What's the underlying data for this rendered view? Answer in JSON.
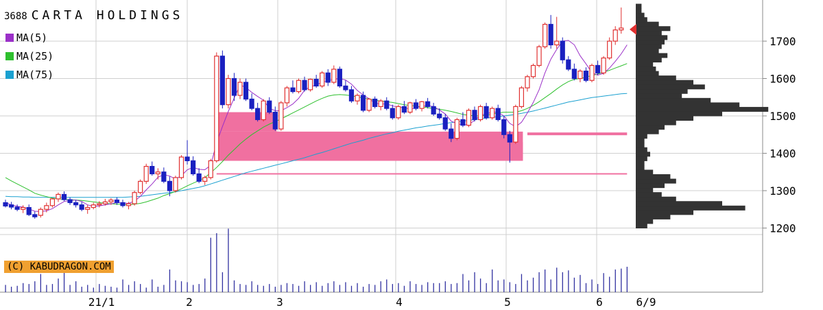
{
  "header": {
    "code": "3688",
    "name": "CARTA HOLDINGS"
  },
  "legend": [
    {
      "label": "MA(5)",
      "color": "#9b30c8"
    },
    {
      "label": "MA(25)",
      "color": "#2ec02e"
    },
    {
      "label": "MA(75)",
      "color": "#1aa0d0"
    }
  ],
  "credit": "(C) KABUDRAGON.COM",
  "chart_data": {
    "type": "candlestick",
    "y_ticks": [
      1700,
      1600,
      1500,
      1400,
      1300,
      1200
    ],
    "ylim": [
      1200,
      1800
    ],
    "x_labels": [
      "21/1",
      "2",
      "3",
      "4",
      "5",
      "6",
      "6/9"
    ],
    "colors": {
      "up": "#e03030",
      "down": "#1a20c0",
      "ma5": "#9b30c8",
      "ma25": "#2ec02e",
      "ma75": "#1aa0d0",
      "volume": "#3030a0",
      "vwap_box": "#f070a0",
      "profile": "#333333",
      "price_marker": "#e03030"
    },
    "candles": [
      [
        1268,
        1276,
        1255,
        1259
      ],
      [
        1262,
        1270,
        1250,
        1256
      ],
      [
        1256,
        1263,
        1245,
        1250
      ],
      [
        1250,
        1261,
        1240,
        1255
      ],
      [
        1255,
        1263,
        1232,
        1236
      ],
      [
        1236,
        1244,
        1225,
        1230
      ],
      [
        1234,
        1255,
        1228,
        1250
      ],
      [
        1250,
        1268,
        1242,
        1260
      ],
      [
        1260,
        1280,
        1255,
        1278
      ],
      [
        1278,
        1295,
        1270,
        1290
      ],
      [
        1290,
        1298,
        1272,
        1276
      ],
      [
        1276,
        1282,
        1262,
        1268
      ],
      [
        1268,
        1275,
        1255,
        1262
      ],
      [
        1262,
        1270,
        1245,
        1250
      ],
      [
        1250,
        1262,
        1238,
        1255
      ],
      [
        1255,
        1268,
        1250,
        1262
      ],
      [
        1262,
        1272,
        1255,
        1265
      ],
      [
        1265,
        1278,
        1260,
        1270
      ],
      [
        1270,
        1280,
        1262,
        1275
      ],
      [
        1275,
        1282,
        1262,
        1268
      ],
      [
        1268,
        1276,
        1255,
        1260
      ],
      [
        1260,
        1270,
        1250,
        1265
      ],
      [
        1265,
        1300,
        1260,
        1295
      ],
      [
        1295,
        1330,
        1290,
        1325
      ],
      [
        1325,
        1372,
        1318,
        1365
      ],
      [
        1365,
        1378,
        1340,
        1345
      ],
      [
        1345,
        1360,
        1330,
        1350
      ],
      [
        1350,
        1362,
        1320,
        1325
      ],
      [
        1325,
        1338,
        1285,
        1300
      ],
      [
        1300,
        1340,
        1295,
        1335
      ],
      [
        1335,
        1395,
        1330,
        1390
      ],
      [
        1390,
        1435,
        1370,
        1380
      ],
      [
        1380,
        1392,
        1340,
        1345
      ],
      [
        1345,
        1360,
        1320,
        1325
      ],
      [
        1325,
        1340,
        1315,
        1335
      ],
      [
        1335,
        1385,
        1330,
        1380
      ],
      [
        1380,
        1670,
        1375,
        1660
      ],
      [
        1660,
        1675,
        1520,
        1530
      ],
      [
        1530,
        1610,
        1520,
        1600
      ],
      [
        1600,
        1615,
        1540,
        1555
      ],
      [
        1555,
        1600,
        1545,
        1590
      ],
      [
        1590,
        1600,
        1540,
        1545
      ],
      [
        1545,
        1560,
        1515,
        1520
      ],
      [
        1520,
        1535,
        1485,
        1490
      ],
      [
        1490,
        1545,
        1485,
        1540
      ],
      [
        1540,
        1550,
        1505,
        1510
      ],
      [
        1510,
        1525,
        1460,
        1465
      ],
      [
        1465,
        1540,
        1460,
        1535
      ],
      [
        1535,
        1580,
        1525,
        1575
      ],
      [
        1575,
        1595,
        1560,
        1565
      ],
      [
        1565,
        1600,
        1560,
        1595
      ],
      [
        1595,
        1605,
        1565,
        1570
      ],
      [
        1570,
        1600,
        1565,
        1598
      ],
      [
        1598,
        1610,
        1575,
        1580
      ],
      [
        1580,
        1620,
        1575,
        1615
      ],
      [
        1615,
        1625,
        1580,
        1590
      ],
      [
        1590,
        1635,
        1585,
        1625
      ],
      [
        1625,
        1632,
        1575,
        1580
      ],
      [
        1580,
        1595,
        1565,
        1570
      ],
      [
        1570,
        1580,
        1535,
        1540
      ],
      [
        1540,
        1560,
        1530,
        1555
      ],
      [
        1555,
        1565,
        1510,
        1515
      ],
      [
        1515,
        1548,
        1510,
        1545
      ],
      [
        1545,
        1552,
        1520,
        1525
      ],
      [
        1525,
        1545,
        1515,
        1540
      ],
      [
        1540,
        1550,
        1515,
        1520
      ],
      [
        1520,
        1530,
        1490,
        1495
      ],
      [
        1495,
        1530,
        1490,
        1525
      ],
      [
        1525,
        1540,
        1505,
        1510
      ],
      [
        1510,
        1538,
        1505,
        1535
      ],
      [
        1535,
        1545,
        1515,
        1520
      ],
      [
        1520,
        1540,
        1512,
        1538
      ],
      [
        1538,
        1548,
        1520,
        1525
      ],
      [
        1525,
        1535,
        1500,
        1505
      ],
      [
        1505,
        1520,
        1490,
        1495
      ],
      [
        1495,
        1505,
        1460,
        1465
      ],
      [
        1465,
        1480,
        1430,
        1440
      ],
      [
        1440,
        1495,
        1435,
        1490
      ],
      [
        1490,
        1510,
        1470,
        1475
      ],
      [
        1475,
        1520,
        1470,
        1515
      ],
      [
        1515,
        1525,
        1485,
        1490
      ],
      [
        1490,
        1530,
        1485,
        1525
      ],
      [
        1525,
        1535,
        1490,
        1495
      ],
      [
        1495,
        1525,
        1490,
        1520
      ],
      [
        1520,
        1530,
        1485,
        1490
      ],
      [
        1490,
        1500,
        1440,
        1450
      ],
      [
        1450,
        1460,
        1375,
        1430
      ],
      [
        1430,
        1530,
        1425,
        1525
      ],
      [
        1525,
        1580,
        1520,
        1575
      ],
      [
        1575,
        1610,
        1565,
        1605
      ],
      [
        1605,
        1640,
        1600,
        1635
      ],
      [
        1635,
        1690,
        1630,
        1685
      ],
      [
        1685,
        1750,
        1680,
        1745
      ],
      [
        1745,
        1770,
        1680,
        1690
      ],
      [
        1690,
        1765,
        1680,
        1700
      ],
      [
        1700,
        1710,
        1640,
        1650
      ],
      [
        1650,
        1660,
        1620,
        1625
      ],
      [
        1625,
        1640,
        1595,
        1600
      ],
      [
        1600,
        1625,
        1590,
        1620
      ],
      [
        1620,
        1630,
        1590,
        1595
      ],
      [
        1595,
        1640,
        1590,
        1635
      ],
      [
        1635,
        1648,
        1610,
        1615
      ],
      [
        1615,
        1660,
        1610,
        1655
      ],
      [
        1655,
        1710,
        1650,
        1700
      ],
      [
        1700,
        1740,
        1690,
        1730
      ],
      [
        1730,
        1790,
        1720,
        1735
      ]
    ],
    "ma5": [
      1268,
      1262,
      1258,
      1256,
      1251,
      1245,
      1244,
      1246,
      1252,
      1262,
      1271,
      1274,
      1275,
      1271,
      1262,
      1258,
      1259,
      1262,
      1265,
      1268,
      1267,
      1266,
      1272,
      1285,
      1302,
      1318,
      1336,
      1343,
      1339,
      1331,
      1340,
      1356,
      1362,
      1357,
      1356,
      1368,
      1428,
      1472,
      1512,
      1548,
      1583,
      1576,
      1563,
      1552,
      1542,
      1520,
      1514,
      1514,
      1522,
      1532,
      1547,
      1569,
      1578,
      1583,
      1590,
      1594,
      1598,
      1600,
      1596,
      1585,
      1568,
      1556,
      1546,
      1534,
      1532,
      1532,
      1527,
      1523,
      1522,
      1518,
      1522,
      1526,
      1527,
      1525,
      1516,
      1505,
      1486,
      1479,
      1476,
      1477,
      1488,
      1502,
      1505,
      1511,
      1509,
      1500,
      1480,
      1471,
      1483,
      1508,
      1536,
      1570,
      1615,
      1652,
      1678,
      1700,
      1702,
      1690,
      1661,
      1639,
      1616,
      1609,
      1614,
      1628,
      1646,
      1666,
      1690
    ],
    "ma25": [
      1335,
      1326,
      1318,
      1310,
      1302,
      1293,
      1288,
      1284,
      1280,
      1278,
      1277,
      1276,
      1275,
      1274,
      1272,
      1270,
      1268,
      1266,
      1265,
      1264,
      1263,
      1263,
      1264,
      1266,
      1270,
      1275,
      1280,
      1287,
      1292,
      1298,
      1305,
      1313,
      1320,
      1327,
      1335,
      1348,
      1362,
      1378,
      1395,
      1410,
      1425,
      1438,
      1450,
      1460,
      1470,
      1478,
      1485,
      1492,
      1500,
      1508,
      1516,
      1524,
      1532,
      1540,
      1547,
      1553,
      1556,
      1557,
      1556,
      1554,
      1551,
      1548,
      1545,
      1542,
      1540,
      1538,
      1536,
      1533,
      1530,
      1528,
      1526,
      1524,
      1522,
      1520,
      1518,
      1515,
      1512,
      1508,
      1504,
      1502,
      1500,
      1500,
      1502,
      1505,
      1508,
      1510,
      1510,
      1510,
      1514,
      1520,
      1528,
      1538,
      1549,
      1560,
      1572,
      1583,
      1592,
      1598,
      1600,
      1604,
      1608,
      1612,
      1617,
      1622,
      1628,
      1634,
      1640
    ],
    "ma75": [
      1285,
      1284,
      1284,
      1283,
      1283,
      1282,
      1282,
      1282,
      1282,
      1282,
      1282,
      1282,
      1282,
      1282,
      1282,
      1282,
      1282,
      1282,
      1282,
      1282,
      1282,
      1283,
      1284,
      1285,
      1287,
      1289,
      1291,
      1293,
      1295,
      1297,
      1300,
      1303,
      1306,
      1309,
      1313,
      1318,
      1323,
      1328,
      1333,
      1338,
      1343,
      1348,
      1352,
      1356,
      1360,
      1364,
      1368,
      1372,
      1376,
      1380,
      1384,
      1388,
      1393,
      1398,
      1402,
      1407,
      1412,
      1417,
      1422,
      1427,
      1431,
      1435,
      1440,
      1444,
      1448,
      1452,
      1455,
      1459,
      1462,
      1465,
      1468,
      1470,
      1473,
      1475,
      1477,
      1480,
      1482,
      1484,
      1486,
      1488,
      1490,
      1492,
      1494,
      1496,
      1498,
      1500,
      1502,
      1504,
      1507,
      1510,
      1513,
      1517,
      1521,
      1525,
      1529,
      1533,
      1537,
      1540,
      1543,
      1546,
      1549,
      1551,
      1553,
      1555,
      1557,
      1559,
      1560
    ],
    "volume": [
      8,
      6,
      7,
      10,
      9,
      12,
      20,
      8,
      9,
      15,
      22,
      8,
      12,
      6,
      8,
      5,
      9,
      7,
      6,
      5,
      14,
      8,
      12,
      9,
      5,
      14,
      6,
      8,
      25,
      13,
      12,
      11,
      8,
      9,
      15,
      60,
      65,
      22,
      70,
      13,
      9,
      8,
      12,
      8,
      7,
      9,
      6,
      8,
      10,
      9,
      7,
      12,
      8,
      11,
      7,
      10,
      12,
      8,
      11,
      7,
      10,
      6,
      9,
      8,
      12,
      14,
      9,
      10,
      7,
      12,
      9,
      8,
      11,
      10,
      10,
      12,
      9,
      10,
      20,
      13,
      22,
      15,
      10,
      25,
      13,
      14,
      11,
      9,
      20,
      13,
      16,
      22,
      25,
      14,
      27,
      22,
      24,
      16,
      19,
      10,
      14,
      9,
      21,
      17,
      25,
      26,
      28
    ],
    "vwap_boxes": [
      {
        "price_low": 1458,
        "price_high": 1510,
        "idx_start": 36,
        "idx_end": 46
      },
      {
        "price_low": 1380,
        "price_high": 1458,
        "idx_start": 36,
        "idx_end": 88
      },
      {
        "price_low": 1380,
        "price_high": 1430,
        "idx_start": 36,
        "idx_end": 88
      }
    ],
    "hlines": [
      {
        "price": 1452,
        "idx_start": 89,
        "idx_end": 106
      },
      {
        "price": 1345,
        "idx_start": 36,
        "idx_end": 106
      }
    ],
    "profile_bins": [
      [
        1200,
        4
      ],
      [
        1212,
        6
      ],
      [
        1224,
        12
      ],
      [
        1236,
        20
      ],
      [
        1248,
        38
      ],
      [
        1260,
        30
      ],
      [
        1272,
        14
      ],
      [
        1284,
        9
      ],
      [
        1296,
        6
      ],
      [
        1308,
        10
      ],
      [
        1320,
        14
      ],
      [
        1332,
        12
      ],
      [
        1344,
        6
      ],
      [
        1356,
        3
      ],
      [
        1368,
        3
      ],
      [
        1380,
        4
      ],
      [
        1392,
        5
      ],
      [
        1404,
        4
      ],
      [
        1416,
        3
      ],
      [
        1428,
        3
      ],
      [
        1440,
        4
      ],
      [
        1452,
        8
      ],
      [
        1464,
        10
      ],
      [
        1476,
        14
      ],
      [
        1488,
        20
      ],
      [
        1500,
        30
      ],
      [
        1512,
        46
      ],
      [
        1524,
        36
      ],
      [
        1536,
        26
      ],
      [
        1548,
        16
      ],
      [
        1560,
        18
      ],
      [
        1572,
        24
      ],
      [
        1584,
        20
      ],
      [
        1596,
        14
      ],
      [
        1608,
        8
      ],
      [
        1620,
        7
      ],
      [
        1632,
        6
      ],
      [
        1644,
        9
      ],
      [
        1656,
        11
      ],
      [
        1668,
        8
      ],
      [
        1680,
        9
      ],
      [
        1692,
        10
      ],
      [
        1704,
        11
      ],
      [
        1716,
        9
      ],
      [
        1728,
        12
      ],
      [
        1740,
        8
      ],
      [
        1752,
        4
      ],
      [
        1764,
        3
      ],
      [
        1776,
        2
      ],
      [
        1788,
        2
      ]
    ],
    "last_price": 1735
  }
}
